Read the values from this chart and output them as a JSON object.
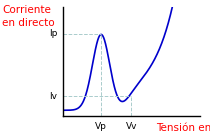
{
  "ylabel": "Corriente\nen directo",
  "xlabel": "Tensión en directo",
  "ylabel_color": "#ff0000",
  "xlabel_color": "#ff0000",
  "background_color": "#ffffff",
  "curve_color": "#0000cc",
  "dashed_color": "#aacccc",
  "Ip_label": "Ip",
  "Iv_label": "Iv",
  "Vp_label": "Vp",
  "Vv_label": "Vv",
  "label_fontsize": 6.5,
  "ylabel_fontsize": 7.5,
  "xlabel_fontsize": 7.5
}
